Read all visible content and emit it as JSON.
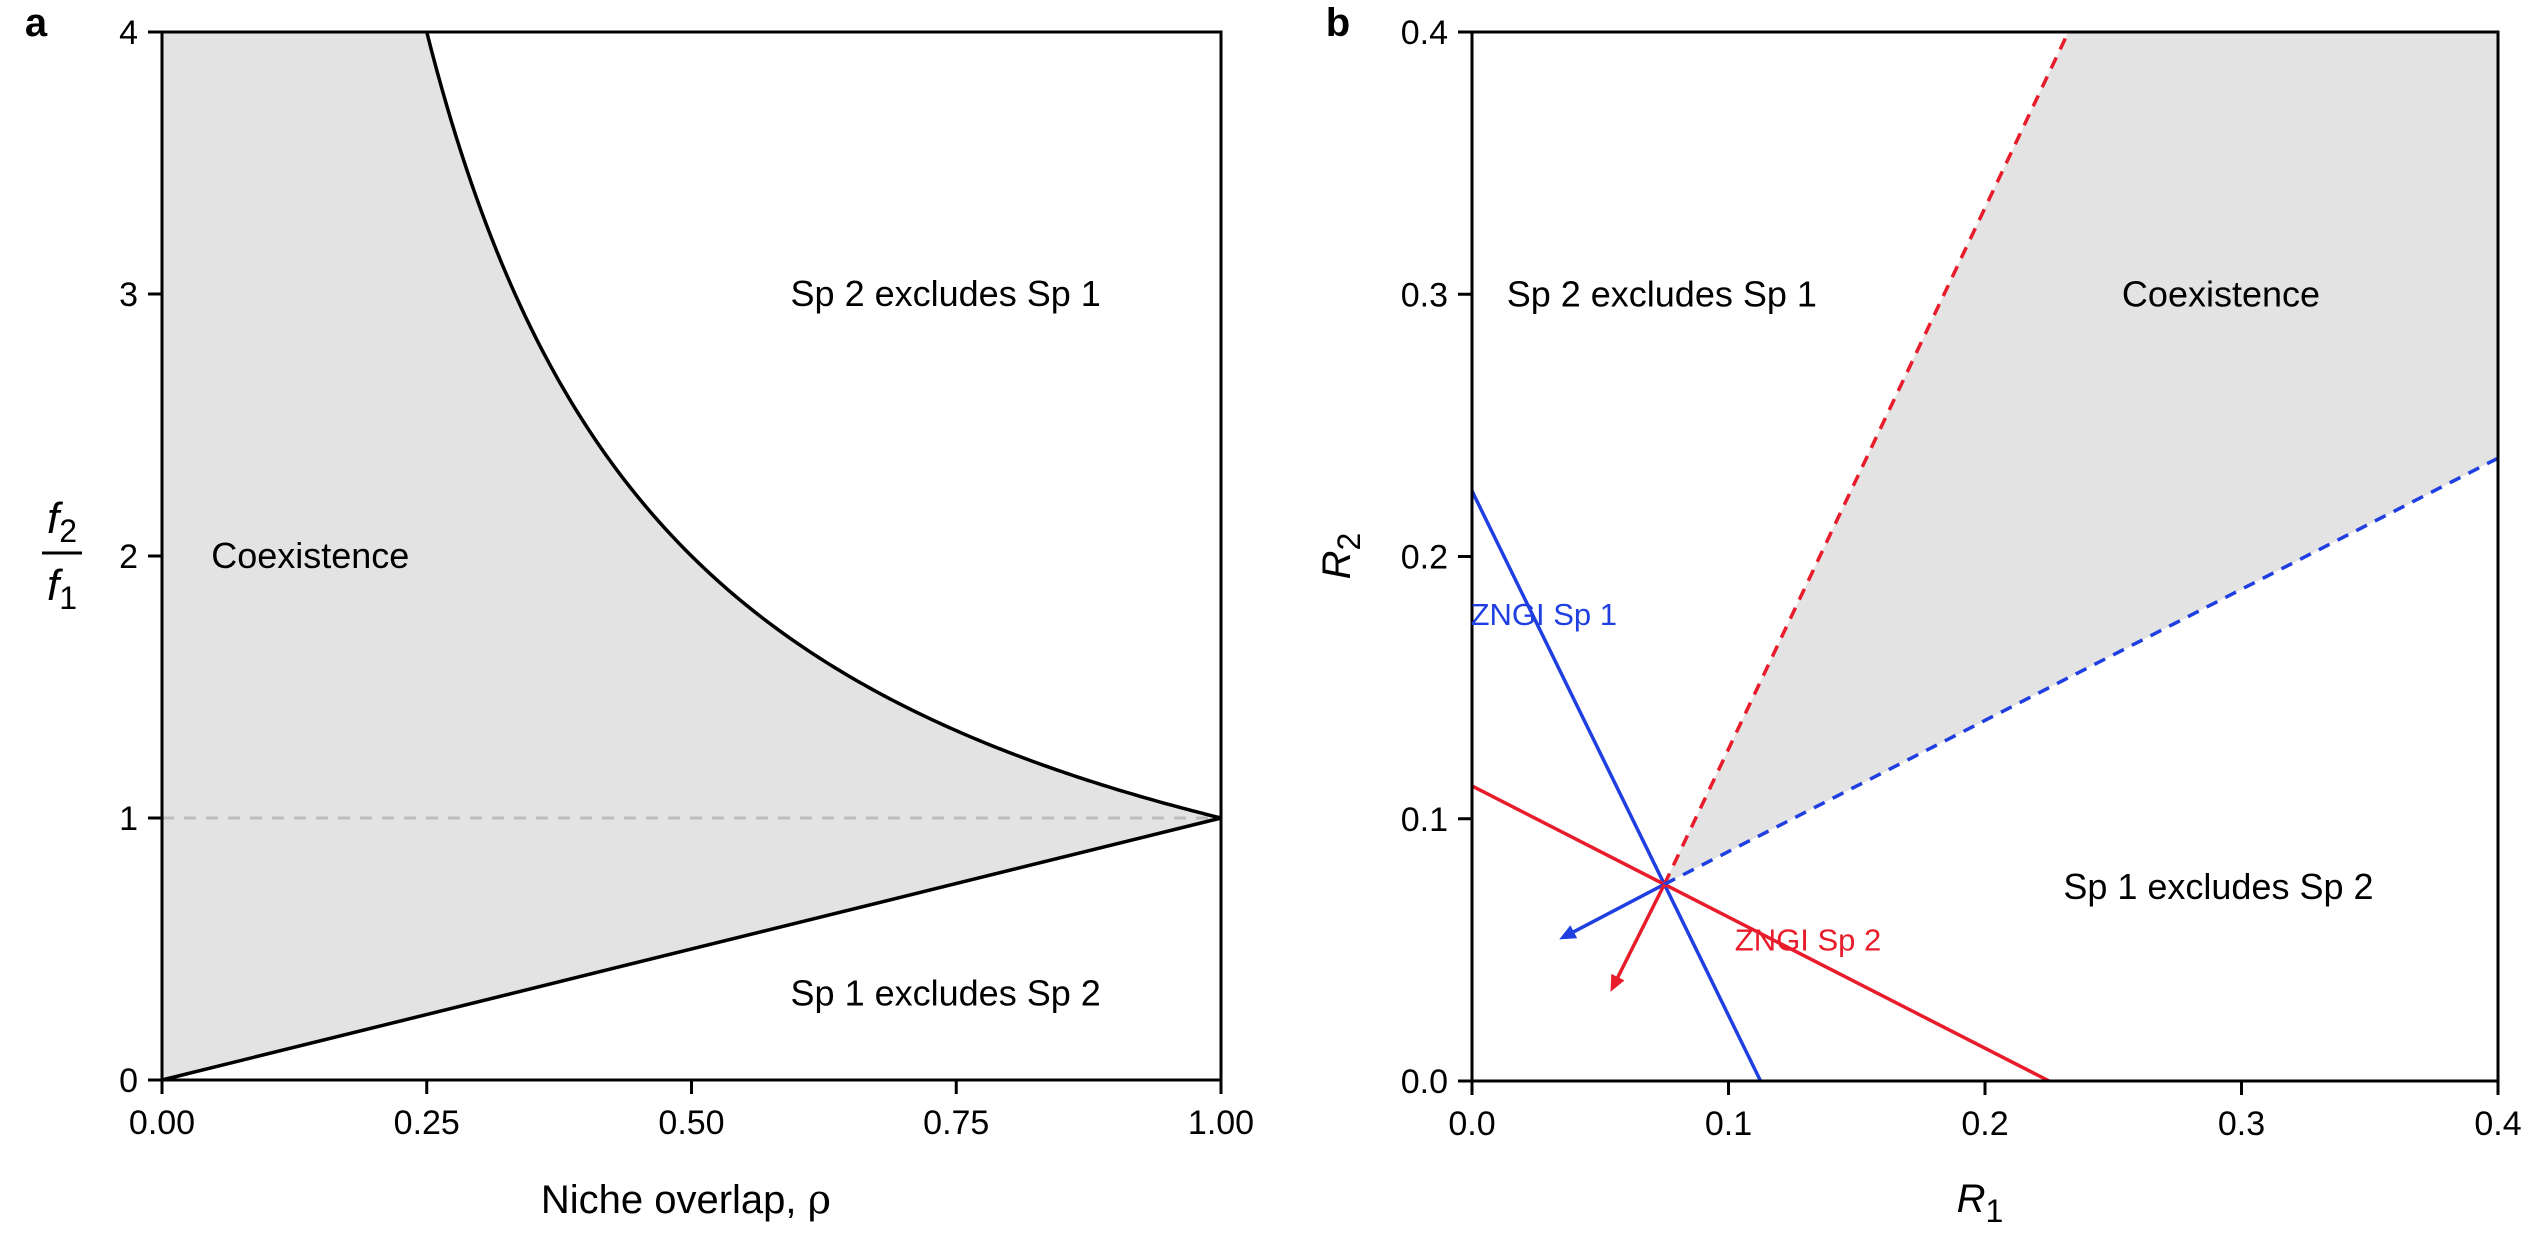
{
  "chart_data": [
    {
      "panel": "a",
      "type": "area",
      "xlabel_text": "Niche overlap, ",
      "xlabel_symbol": "ρ",
      "ylabel_num": "f",
      "ylabel_num_sub": "2",
      "ylabel_den": "f",
      "ylabel_den_sub": "1",
      "xlim": [
        0,
        1
      ],
      "ylim": [
        0,
        4
      ],
      "xticks": [
        "0.00",
        "0.25",
        "0.50",
        "0.75",
        "1.00"
      ],
      "xtick_values": [
        0,
        0.25,
        0.5,
        0.75,
        1.0
      ],
      "yticks": [
        "0",
        "1",
        "2",
        "3",
        "4"
      ],
      "ytick_values": [
        0,
        1,
        2,
        3,
        4
      ],
      "grid": false,
      "reference_line": {
        "y": 1,
        "style": "dashed",
        "color": "#bdbdbd"
      },
      "boundaries": [
        {
          "x": [
            0.25,
            0.3,
            0.35,
            0.4,
            0.45,
            0.5,
            0.6,
            0.7,
            0.8,
            0.9,
            1.0
          ],
          "y": [
            4.0,
            3.333,
            2.857,
            2.5,
            2.222,
            2.0,
            1.667,
            1.429,
            1.25,
            1.111,
            1.0
          ]
        },
        {
          "x": [
            0,
            1.0
          ],
          "y": [
            0,
            1.0
          ]
        }
      ],
      "fill_color": "#e3e3e3",
      "regions": [
        {
          "label": "Coexistence",
          "x": 0.14,
          "y": 2.0
        },
        {
          "label": "Sp 2 excludes Sp 1",
          "x": 0.74,
          "y": 3.0
        },
        {
          "label": "Sp 1 excludes Sp 2",
          "x": 0.74,
          "y": 0.33
        }
      ]
    },
    {
      "panel": "b",
      "type": "line",
      "xlabel": "R",
      "xlabel_sub": "1",
      "ylabel": "R",
      "ylabel_sub": "2",
      "xlim": [
        0,
        0.4
      ],
      "ylim": [
        0,
        0.4
      ],
      "xticks": [
        "0.0",
        "0.1",
        "0.2",
        "0.3",
        "0.4"
      ],
      "xtick_values": [
        0,
        0.1,
        0.2,
        0.3,
        0.4
      ],
      "yticks": [
        "0.0",
        "0.1",
        "0.2",
        "0.3",
        "0.4"
      ],
      "ytick_values": [
        0,
        0.1,
        0.2,
        0.3,
        0.4
      ],
      "grid": false,
      "equilibrium_point": {
        "x": 0.075,
        "y": 0.075
      },
      "lines": [
        {
          "name": "ZNGI Sp 1",
          "color": "#1f3fe0",
          "style": "solid",
          "x": [
            0,
            0.1125
          ],
          "y": [
            0.225,
            0
          ]
        },
        {
          "name": "ZNGI Sp 2",
          "color": "#e81c2a",
          "style": "solid",
          "x": [
            0,
            0.225
          ],
          "y": [
            0.1125,
            0
          ]
        },
        {
          "color": "#e81c2a",
          "style": "dashed",
          "x": [
            0.075,
            0.2325
          ],
          "y": [
            0.075,
            0.4
          ]
        },
        {
          "color": "#1f3fe0",
          "style": "dashed",
          "x": [
            0.075,
            0.4
          ],
          "y": [
            0.075,
            0.2375
          ]
        }
      ],
      "consumption_vectors": [
        {
          "color": "#1f3fe0",
          "from": [
            0.075,
            0.075
          ],
          "to": [
            0.034,
            0.054
          ]
        },
        {
          "color": "#e81c2a",
          "from": [
            0.075,
            0.075
          ],
          "to": [
            0.054,
            0.034
          ]
        }
      ],
      "fill_color": "#e3e3e3",
      "line_labels": [
        {
          "label": "ZNGI Sp 1",
          "x": 0.028,
          "y": 0.178,
          "color": "#1f3fe0"
        },
        {
          "label": "ZNGI Sp 2",
          "x": 0.131,
          "y": 0.054,
          "color": "#e81c2a"
        }
      ],
      "regions": [
        {
          "label": "Sp 2 excludes Sp 1",
          "x": 0.074,
          "y": 0.3
        },
        {
          "label": "Coexistence",
          "x": 0.292,
          "y": 0.3
        },
        {
          "label": "Sp 1 excludes Sp 2",
          "x": 0.291,
          "y": 0.074
        }
      ]
    }
  ],
  "panel_letters": [
    "a",
    "b"
  ]
}
